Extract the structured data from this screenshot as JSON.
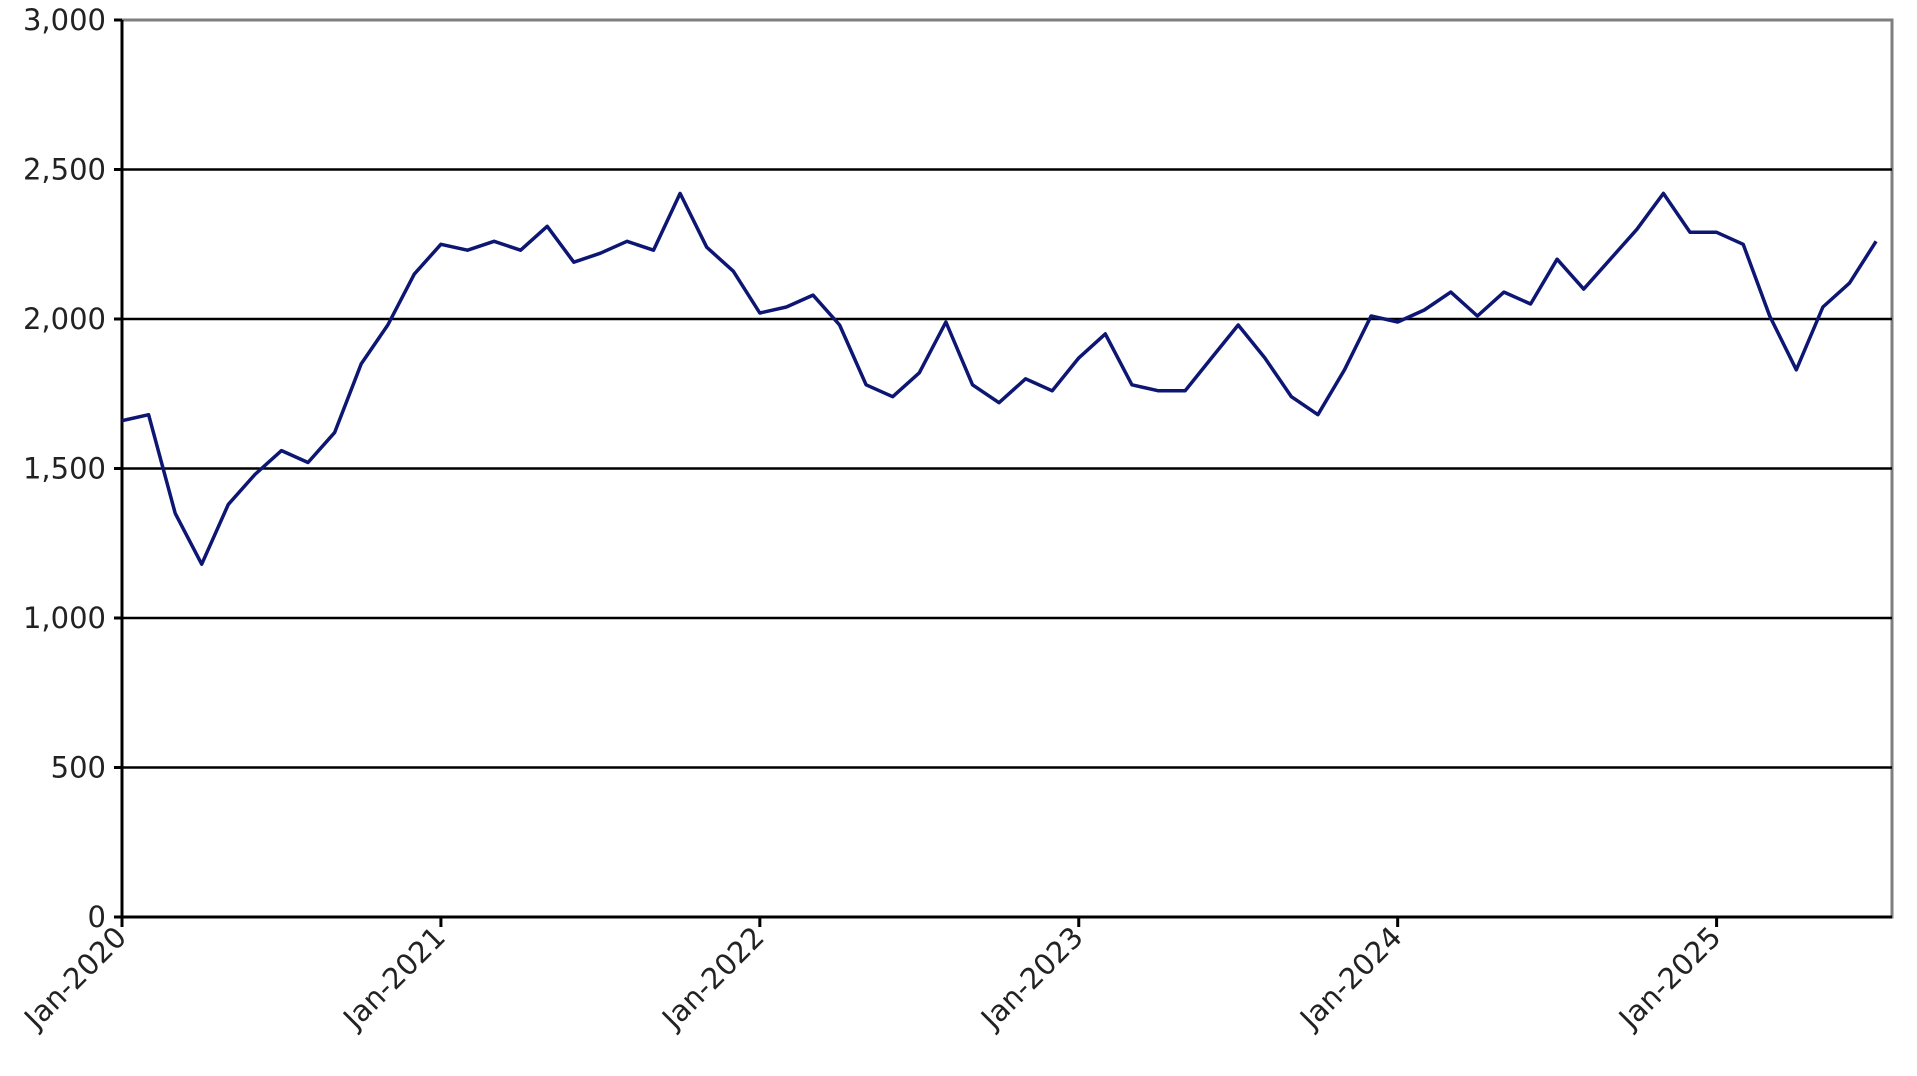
{
  "chart_data": {
    "type": "line",
    "title": "",
    "xlabel": "",
    "ylabel": "",
    "ylim": [
      0,
      3000
    ],
    "xlim": [
      "2020-01",
      "2025-07"
    ],
    "y_ticks": [
      "0",
      "500",
      "1,000",
      "1,500",
      "2,000",
      "2,500",
      "3,000"
    ],
    "y_tick_values": [
      0,
      500,
      1000,
      1500,
      2000,
      2500,
      3000
    ],
    "x_ticks": [
      "Jan-2020",
      "Jan-2021",
      "Jan-2022",
      "Jan-2023",
      "Jan-2024",
      "Jan-2025"
    ],
    "x_tick_values": [
      "2020-01",
      "2021-01",
      "2022-01",
      "2023-01",
      "2024-01",
      "2025-01"
    ],
    "grid": true,
    "legend": "none",
    "line_color": "#0d1673",
    "series": [
      {
        "x": [
          "2020-01",
          "2020-02",
          "2020-03",
          "2020-04",
          "2020-05",
          "2020-06",
          "2020-07",
          "2020-08",
          "2020-09",
          "2020-10",
          "2020-11",
          "2020-12",
          "2021-01",
          "2021-02",
          "2021-03",
          "2021-04",
          "2021-05",
          "2021-06",
          "2021-07",
          "2021-08",
          "2021-09",
          "2021-10",
          "2021-11",
          "2021-12",
          "2022-01",
          "2022-02",
          "2022-03",
          "2022-04",
          "2022-05",
          "2022-06",
          "2022-07",
          "2022-08",
          "2022-09",
          "2022-10",
          "2022-11",
          "2022-12",
          "2023-01",
          "2023-02",
          "2023-03",
          "2023-04",
          "2023-05",
          "2023-06",
          "2023-07",
          "2023-08",
          "2023-09",
          "2023-10",
          "2023-11",
          "2023-12",
          "2024-01",
          "2024-02",
          "2024-03",
          "2024-04",
          "2024-05",
          "2024-06",
          "2024-07",
          "2024-08",
          "2024-09",
          "2024-10",
          "2024-11",
          "2024-12",
          "2025-01",
          "2025-02",
          "2025-03",
          "2025-04",
          "2025-05",
          "2025-06",
          "2025-07"
        ],
        "values": [
          1660,
          1680,
          1350,
          1180,
          1380,
          1480,
          1560,
          1520,
          1620,
          1850,
          1980,
          2150,
          2250,
          2230,
          2260,
          2230,
          2310,
          2190,
          2220,
          2260,
          2230,
          2420,
          2240,
          2160,
          2020,
          2040,
          2080,
          1980,
          1780,
          1740,
          1820,
          1990,
          1780,
          1720,
          1800,
          1760,
          1870,
          1950,
          1780,
          1760,
          1760,
          1870,
          1980,
          1870,
          1740,
          1680,
          1830,
          2010,
          1990,
          2030,
          2090,
          2010,
          2090,
          2050,
          2200,
          2100,
          2200,
          2300,
          2420,
          2290,
          2290,
          2250,
          2010,
          1830,
          2040,
          2120,
          2260
        ]
      }
    ]
  }
}
